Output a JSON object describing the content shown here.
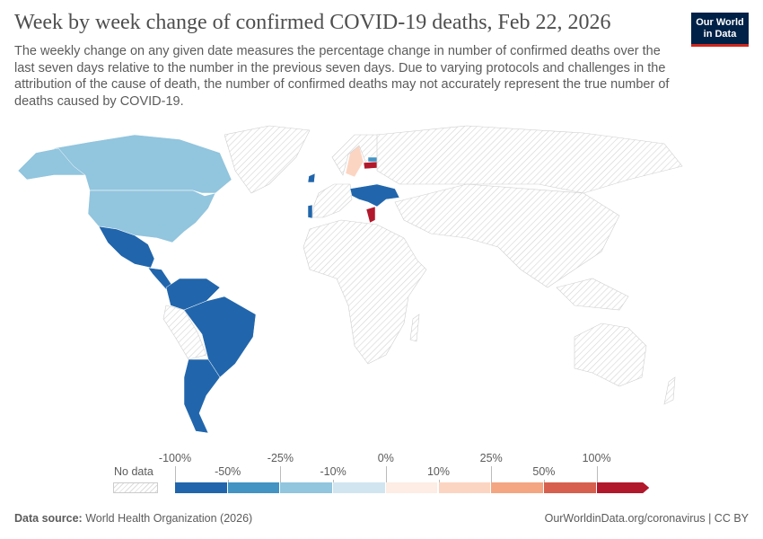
{
  "header": {
    "title": "Week by week change of confirmed COVID-19 deaths, Feb 22, 2026",
    "subtitle": "The weekly change on any given date measures the percentage change in number of confirmed deaths over the last seven days relative to the number in the previous seven days. Due to varying protocols and challenges in the attribution of the cause of death, the number of confirmed deaths may not accurately represent the true number of deaths caused by COVID-19.",
    "logo": "Our World in Data"
  },
  "legend": {
    "no_data": "No data",
    "top_ticks": [
      "-100%",
      "-25%",
      "0%",
      "25%",
      "100%"
    ],
    "bottom_ticks": [
      "-50%",
      "-10%",
      "10%",
      "50%"
    ],
    "colors": [
      "#2166ac",
      "#4393c3",
      "#92c5de",
      "#d1e5f0",
      "#fdede4",
      "#fcd5c2",
      "#f4a582",
      "#d6604d",
      "#b2182b"
    ],
    "no_data_color": "#e8e8e8"
  },
  "map_data": {
    "dark_blue": "#2166ac",
    "light_blue": "#92c5de",
    "peach": "#fcd5c2",
    "red": "#b2182b"
  },
  "footer": {
    "source_label": "Data source:",
    "source": "World Health Organization (2026)",
    "link": "OurWorldinData.org/coronavirus | CC BY"
  }
}
